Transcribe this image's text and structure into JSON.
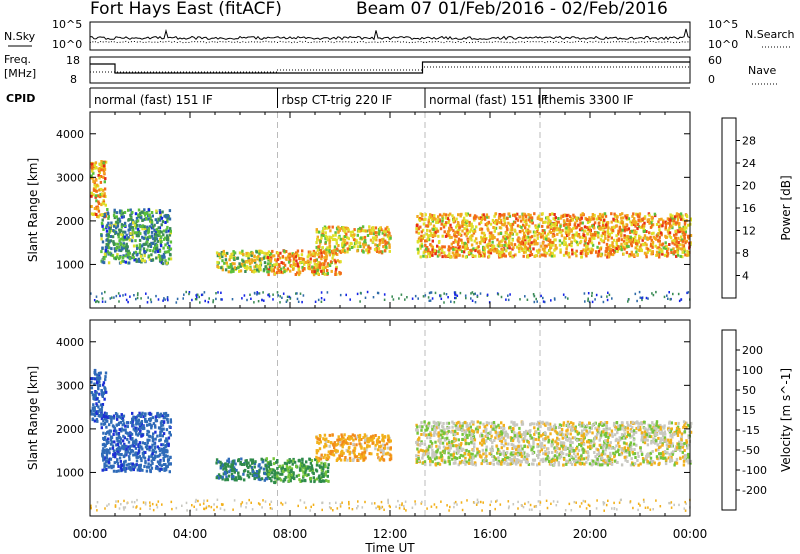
{
  "header": {
    "station": "Fort Hays East (fitACF)",
    "beam": "Beam 07",
    "date_range": "01/Feb/2016 - 02/Feb/2016"
  },
  "top_panel": {
    "left_label": "N.Sky",
    "left_ticks": [
      "10^5",
      "10^0"
    ],
    "right_label": "N.Search",
    "right_ticks": [
      "10^5",
      "10^0"
    ]
  },
  "freq_panel": {
    "left_label": "Freq.",
    "left_unit": "[MHz]",
    "left_ticks": [
      "18",
      "8"
    ],
    "right_label": "Nave",
    "right_ticks": [
      "60",
      "0"
    ]
  },
  "cpid": {
    "label": "CPID",
    "segments": [
      {
        "start_hour": 0,
        "text": "normal (fast) 151 IF"
      },
      {
        "start_hour": 7.5,
        "text": "rbsp CT-trig 220 IF"
      },
      {
        "start_hour": 13.4,
        "text": "normal (fast) 151 IF"
      },
      {
        "start_hour": 18.0,
        "text": "themis 3300 IF"
      }
    ]
  },
  "x_axis": {
    "label": "Time UT",
    "ticks": [
      "00:00",
      "04:00",
      "08:00",
      "12:00",
      "16:00",
      "20:00",
      "00:00"
    ],
    "range_hours": [
      0,
      24
    ]
  },
  "colors": {
    "power": [
      "#1424e6",
      "#2e6aa8",
      "#3b8c55",
      "#5bbf3a",
      "#dfe02a",
      "#f2a81e",
      "#f26a18",
      "#e62a14"
    ],
    "velocity": [
      "#1c2fd6",
      "#2f6bb8",
      "#2e8a4a",
      "#74c43a",
      "#c8c8c0",
      "#f2b01a",
      "#f28a1a",
      "#f0501a",
      "#e01414"
    ]
  },
  "chart_data": [
    {
      "type": "heatmap",
      "title": "Power",
      "ylabel": "Slant Range [km]",
      "ylim": [
        0,
        4500
      ],
      "yticks": [
        1000,
        2000,
        3000,
        4000
      ],
      "colorbar_label": "Power [dB]",
      "colorbar_ticks": [
        "4",
        "8",
        "12",
        "16",
        "20",
        "24",
        "28"
      ],
      "colorbar_range": [
        0,
        32
      ],
      "scatter_bands": [
        {
          "t0": 0.0,
          "t1": 0.6,
          "r0": 2100,
          "r1": 3400,
          "level": 22
        },
        {
          "t0": 0.4,
          "t1": 3.2,
          "r0": 1050,
          "r1": 2300,
          "level": 10
        },
        {
          "t0": 5.0,
          "t1": 7.2,
          "r0": 850,
          "r1": 1350,
          "level": 16
        },
        {
          "t0": 7.0,
          "t1": 10.0,
          "r0": 800,
          "r1": 1350,
          "level": 22
        },
        {
          "t0": 9.0,
          "t1": 12.0,
          "r0": 1300,
          "r1": 1900,
          "level": 20
        },
        {
          "t0": 13.0,
          "t1": 24.0,
          "r0": 1200,
          "r1": 2200,
          "level": 22
        }
      ]
    },
    {
      "type": "heatmap",
      "title": "Velocity",
      "ylabel": "Slant Range [km]",
      "ylim": [
        0,
        4500
      ],
      "yticks": [
        1000,
        2000,
        3000,
        4000
      ],
      "colorbar_label": "Velocity [m s^-1]",
      "colorbar_ticks": [
        "200",
        "100",
        "50",
        "15",
        "-15",
        "-50",
        "-100",
        "-200"
      ],
      "colorbar_range": [
        -250,
        250
      ],
      "scatter_bands": [
        {
          "t0": 0.0,
          "t1": 0.6,
          "r0": 2200,
          "r1": 3400,
          "level": 180
        },
        {
          "t0": 0.4,
          "t1": 3.2,
          "r0": 1050,
          "r1": 2400,
          "level": 180
        },
        {
          "t0": 5.0,
          "t1": 7.2,
          "r0": 850,
          "r1": 1350,
          "level": 90
        },
        {
          "t0": 7.0,
          "t1": 9.5,
          "r0": 800,
          "r1": 1350,
          "level": 60
        },
        {
          "t0": 9.0,
          "t1": 12.0,
          "r0": 1300,
          "r1": 1900,
          "level": -40
        },
        {
          "t0": 13.0,
          "t1": 24.0,
          "r0": 1200,
          "r1": 2200,
          "level": 0
        }
      ]
    }
  ]
}
